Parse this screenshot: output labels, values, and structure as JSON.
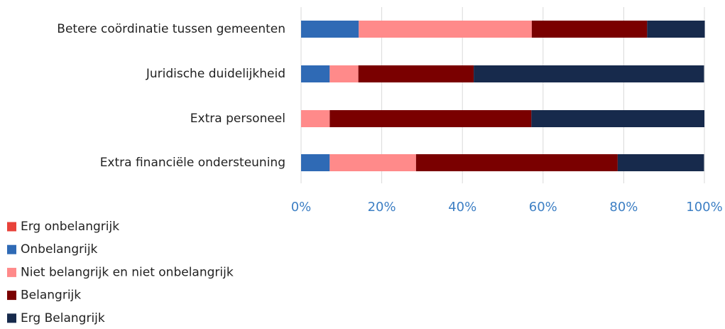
{
  "chart_data": {
    "type": "stacked_bar_horizontal",
    "categories": [
      "Betere coördinatie tussen gemeenten",
      "Juridische duidelijkheid",
      "Extra personeel",
      "Extra financiële ondersteuning"
    ],
    "series": [
      {
        "name": "Erg onbelangrijk",
        "color": "#e8423a",
        "values": [
          0,
          0,
          0,
          0
        ]
      },
      {
        "name": "Onbelangrijk",
        "color": "#2f6ab5",
        "values": [
          14.3,
          7.1,
          0,
          7.1
        ]
      },
      {
        "name": "Niet belangrijk en niet onbelangrijk",
        "color": "#ff8a8a",
        "values": [
          42.9,
          7.1,
          7.1,
          21.4
        ]
      },
      {
        "name": "Belangrijk",
        "color": "#7a0000",
        "values": [
          28.6,
          28.6,
          50,
          50
        ]
      },
      {
        "name": "Erg Belangrijk",
        "color": "#172a4c",
        "values": [
          14.3,
          57.1,
          42.9,
          21.4
        ]
      }
    ],
    "xlim": [
      0,
      100
    ],
    "xticks": [
      {
        "value": 0,
        "label": "0%"
      },
      {
        "value": 20,
        "label": "20%"
      },
      {
        "value": 40,
        "label": "40%"
      },
      {
        "value": 60,
        "label": "60%"
      },
      {
        "value": 80,
        "label": "80%"
      },
      {
        "value": 100,
        "label": "100%"
      }
    ],
    "grid": true,
    "legend": "bottom-left"
  }
}
